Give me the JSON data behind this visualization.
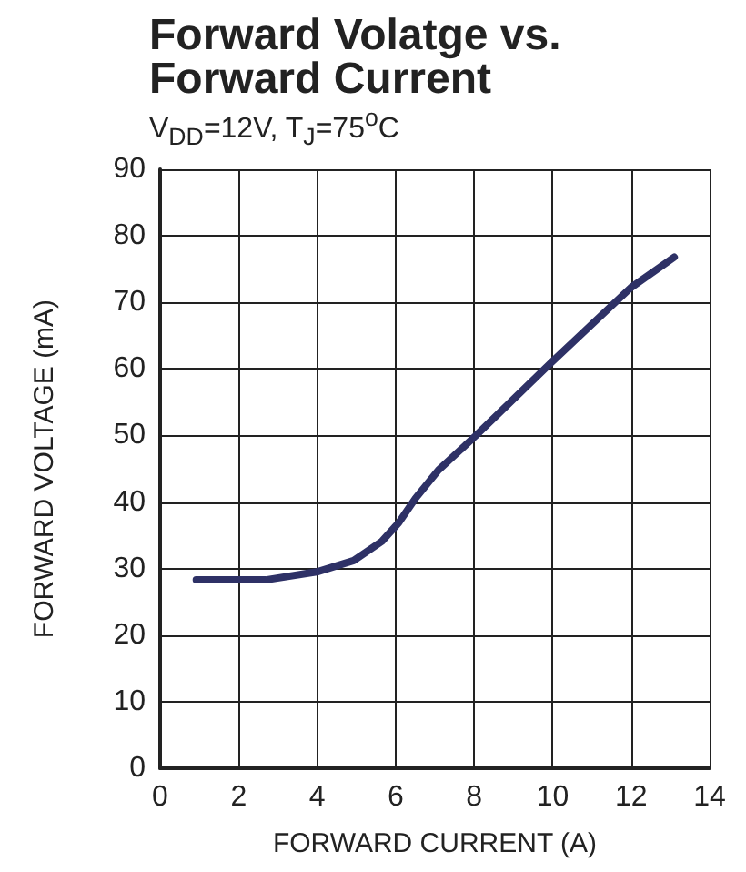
{
  "chart_data": {
    "type": "line",
    "title": "Forward Volatge vs.\nForward Current",
    "subtitle": "V$_{DD}$=12V, T$_{J}$=75$^{o}$C",
    "xlabel": "FORWARD CURRENT (A)",
    "ylabel": "FORWARD VOLTAGE (mA)",
    "x": [
      0.92,
      2.69,
      3.99,
      4.93,
      5.65,
      6.08,
      6.51,
      7.09,
      8.03,
      9.97,
      11.99,
      13.1
    ],
    "series": [
      {
        "color": "#2e3166",
        "values": [
          28.3,
          28.3,
          29.5,
          31.2,
          34.1,
          36.9,
          40.6,
          44.8,
          49.9,
          61.0,
          72.2,
          76.8
        ]
      }
    ],
    "xlim": [
      0,
      14
    ],
    "xticks": [
      0,
      2,
      4,
      6,
      8,
      10,
      12,
      14
    ],
    "ylim": [
      0,
      90
    ],
    "yticks": [
      0,
      10,
      20,
      30,
      40,
      50,
      60,
      70,
      80,
      90
    ],
    "grid": true,
    "marker": "none",
    "line_style": "solid"
  }
}
